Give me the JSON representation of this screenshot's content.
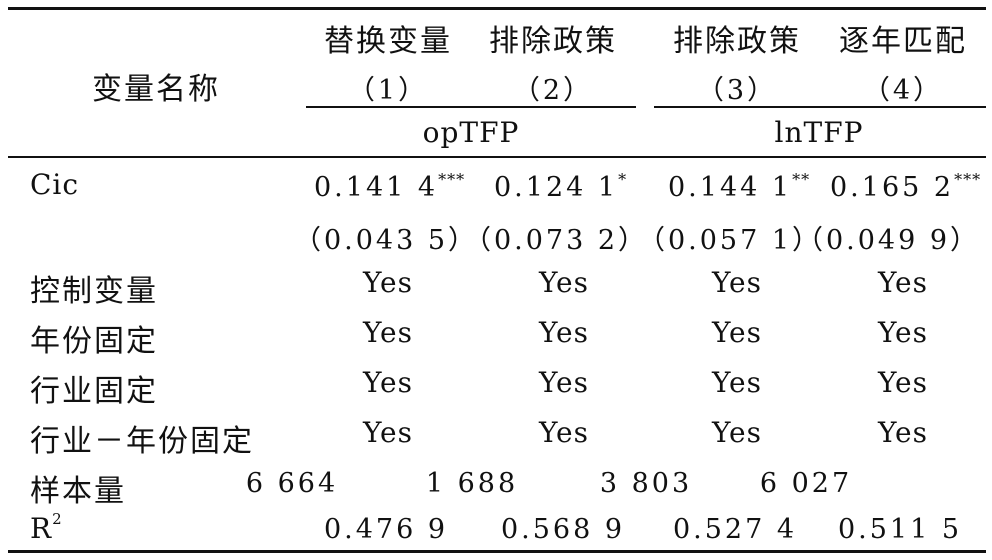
{
  "table": {
    "header": {
      "var_name": "变量名称",
      "columns": [
        {
          "title": "替换变量",
          "index": "（1）"
        },
        {
          "title": "排除政策",
          "index": "（2）"
        },
        {
          "title": "排除政策",
          "index": "（3）"
        },
        {
          "title": "逐年匹配",
          "index": "（4）"
        }
      ],
      "groups": [
        "opTFP",
        "lnTFP"
      ]
    },
    "rows": {
      "cic": {
        "label": "Cic",
        "coefs": [
          "0.141 4",
          "0.124 1",
          "0.144 1",
          "0.165 2"
        ],
        "stars": [
          "***",
          "*",
          "**",
          "***"
        ],
        "ses": [
          "（0.043 5）",
          "（0.073 2）",
          "（0.057 1）",
          "（0.049 9）"
        ]
      },
      "controls": {
        "label": "控制变量",
        "values": [
          "Yes",
          "Yes",
          "Yes",
          "Yes"
        ]
      },
      "year_fe": {
        "label": "年份固定",
        "values": [
          "Yes",
          "Yes",
          "Yes",
          "Yes"
        ]
      },
      "ind_fe": {
        "label": "行业固定",
        "values": [
          "Yes",
          "Yes",
          "Yes",
          "Yes"
        ]
      },
      "ind_year_fe": {
        "label": "行业－年份固定",
        "values": [
          "Yes",
          "Yes",
          "Yes",
          "Yes"
        ]
      },
      "n": {
        "label": "样本量",
        "values": [
          "6 664",
          "1 688",
          "3 803",
          "6 027"
        ]
      },
      "r2": {
        "label": "R",
        "label_sup": "2",
        "values": [
          "0.476 9",
          "0.568 9",
          "0.527 4",
          "0.511 5"
        ]
      }
    }
  }
}
